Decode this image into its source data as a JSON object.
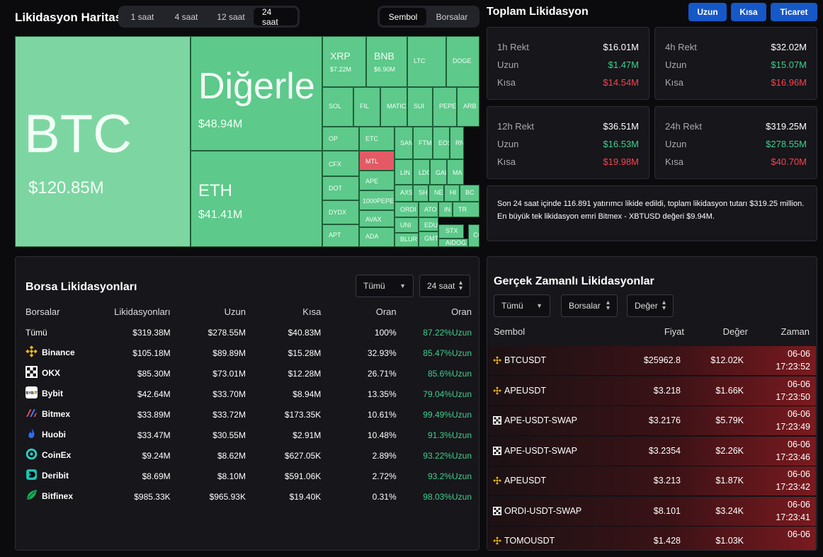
{
  "map": {
    "title": "Likidasyon Haritası",
    "time_tabs": [
      "1 saat",
      "4 saat",
      "12 saat",
      "24 saat"
    ],
    "active_time": 3,
    "view_tabs": [
      "Sembol",
      "Borsalar"
    ],
    "active_view": 0,
    "tiles": [
      {
        "n": "BTC",
        "v": "$120.85M"
      },
      {
        "n": "Diğerle",
        "v": "$48.94M"
      },
      {
        "n": "ETH",
        "v": "$41.41M"
      },
      {
        "n": "XRP",
        "v": "$7.22M"
      },
      {
        "n": "BNB",
        "v": "$6.90M"
      },
      {
        "n": "LTC"
      },
      {
        "n": "DOGE"
      },
      {
        "n": "SOL"
      },
      {
        "n": "FIL"
      },
      {
        "n": "MATIC"
      },
      {
        "n": "SUI"
      },
      {
        "n": "PEPE"
      },
      {
        "n": "ARB"
      },
      {
        "n": "OP"
      },
      {
        "n": "ETC"
      },
      {
        "n": "SAN"
      },
      {
        "n": "FTM"
      },
      {
        "n": "EOS"
      },
      {
        "n": "RN"
      },
      {
        "n": "CFX"
      },
      {
        "n": "MTL",
        "red": true
      },
      {
        "n": "LIN"
      },
      {
        "n": "LDO"
      },
      {
        "n": "GAL"
      },
      {
        "n": "MA"
      },
      {
        "n": "DOT"
      },
      {
        "n": "APE"
      },
      {
        "n": "AXS"
      },
      {
        "n": "SH"
      },
      {
        "n": "NE"
      },
      {
        "n": "HI"
      },
      {
        "n": "BC"
      },
      {
        "n": "DYDX"
      },
      {
        "n": "1000PEPE"
      },
      {
        "n": "ORDI"
      },
      {
        "n": "ATO"
      },
      {
        "n": "IN"
      },
      {
        "n": "TR"
      },
      {
        "n": "APT"
      },
      {
        "n": "AVAX"
      },
      {
        "n": "UNI"
      },
      {
        "n": "EDU"
      },
      {
        "n": "STX"
      },
      {
        "n": "ADA"
      },
      {
        "n": "BLUR"
      },
      {
        "n": "GMT"
      },
      {
        "n": "AIDOG"
      },
      {
        "n": "CC"
      }
    ]
  },
  "totals": {
    "title": "Toplam Likidasyon",
    "buttons": [
      "Uzun",
      "Kısa",
      "Ticaret"
    ],
    "cards": [
      {
        "label": "1h Rekt",
        "total": "$16.01M",
        "long_label": "Uzun",
        "long": "$1.47M",
        "short_label": "Kısa",
        "short": "$14.54M"
      },
      {
        "label": "4h Rekt",
        "total": "$32.02M",
        "long_label": "Uzun",
        "long": "$15.07M",
        "short_label": "Kısa",
        "short": "$16.96M"
      },
      {
        "label": "12h Rekt",
        "total": "$36.51M",
        "long_label": "Uzun",
        "long": "$16.53M",
        "short_label": "Kısa",
        "short": "$19.98M"
      },
      {
        "label": "24h Rekt",
        "total": "$319.25M",
        "long_label": "Uzun",
        "long": "$278.55M",
        "short_label": "Kısa",
        "short": "$40.70M"
      }
    ],
    "summary_line1": "Son 24 saat içinde 116.891 yatırımcı likide edildi, toplam likidasyon tutarı $319.25 million.",
    "summary_line2": "En büyük tek likidasyon emri Bitmex - XBTUSD değeri $9.94M."
  },
  "exchanges": {
    "title": "Borsa Likidasyonları",
    "filter": "Tümü",
    "period": "24 saat",
    "headers": [
      "Borsalar",
      "Likidasyonları",
      "Uzun",
      "Kısa",
      "Oran",
      "Oran"
    ],
    "rows": [
      {
        "name": "Tümü",
        "icon": "none",
        "liq": "$319.38M",
        "long": "$278.55M",
        "short": "$40.83M",
        "ratio": "100%",
        "long_ratio": "87.22%Uzun"
      },
      {
        "name": "Binance",
        "icon": "binance-icon",
        "liq": "$105.18M",
        "long": "$89.89M",
        "short": "$15.28M",
        "ratio": "32.93%",
        "long_ratio": "85.47%Uzun"
      },
      {
        "name": "OKX",
        "icon": "okx-icon",
        "liq": "$85.30M",
        "long": "$73.01M",
        "short": "$12.28M",
        "ratio": "26.71%",
        "long_ratio": "85.6%Uzun"
      },
      {
        "name": "Bybit",
        "icon": "bybit-icon",
        "liq": "$42.64M",
        "long": "$33.70M",
        "short": "$8.94M",
        "ratio": "13.35%",
        "long_ratio": "79.04%Uzun"
      },
      {
        "name": "Bitmex",
        "icon": "bitmex-icon",
        "liq": "$33.89M",
        "long": "$33.72M",
        "short": "$173.35K",
        "ratio": "10.61%",
        "long_ratio": "99.49%Uzun"
      },
      {
        "name": "Huobi",
        "icon": "huobi-icon",
        "liq": "$33.47M",
        "long": "$30.55M",
        "short": "$2.91M",
        "ratio": "10.48%",
        "long_ratio": "91.3%Uzun"
      },
      {
        "name": "CoinEx",
        "icon": "coinex-icon",
        "liq": "$9.24M",
        "long": "$8.62M",
        "short": "$627.05K",
        "ratio": "2.89%",
        "long_ratio": "93.22%Uzun"
      },
      {
        "name": "Deribit",
        "icon": "deribit-icon",
        "liq": "$8.69M",
        "long": "$8.10M",
        "short": "$591.06K",
        "ratio": "2.72%",
        "long_ratio": "93.2%Uzun"
      },
      {
        "name": "Bitfinex",
        "icon": "bitfinex-icon",
        "liq": "$985.33K",
        "long": "$965.93K",
        "short": "$19.40K",
        "ratio": "0.31%",
        "long_ratio": "98.03%Uzun"
      }
    ]
  },
  "realtime": {
    "title": "Gerçek Zamanlı Likidasyonlar",
    "filters": [
      "Tümü",
      "Borsalar",
      "Değer"
    ],
    "headers": [
      "Sembol",
      "Fiyat",
      "Değer",
      "Zaman"
    ],
    "rows": [
      {
        "icon": "binance-icon",
        "symbol": "BTCUSDT",
        "price": "$25962.8",
        "value": "$12.02K",
        "date": "06-06",
        "time": "17:23:52"
      },
      {
        "icon": "binance-icon",
        "symbol": "APEUSDT",
        "price": "$3.218",
        "value": "$1.66K",
        "date": "06-06",
        "time": "17:23:50"
      },
      {
        "icon": "okx-icon",
        "symbol": "APE-USDT-SWAP",
        "price": "$3.2176",
        "value": "$5.79K",
        "date": "06-06",
        "time": "17:23:49"
      },
      {
        "icon": "okx-icon",
        "symbol": "APE-USDT-SWAP",
        "price": "$3.2354",
        "value": "$2.26K",
        "date": "06-06",
        "time": "17:23:46"
      },
      {
        "icon": "binance-icon",
        "symbol": "APEUSDT",
        "price": "$3.213",
        "value": "$1.87K",
        "date": "06-06",
        "time": "17:23:42"
      },
      {
        "icon": "okx-icon",
        "symbol": "ORDI-USDT-SWAP",
        "price": "$8.101",
        "value": "$3.24K",
        "date": "06-06",
        "time": "17:23:41"
      },
      {
        "icon": "binance-icon",
        "symbol": "TOMOUSDT",
        "price": "$1.428",
        "value": "$1.03K",
        "date": "06-06",
        "time": ""
      }
    ]
  }
}
